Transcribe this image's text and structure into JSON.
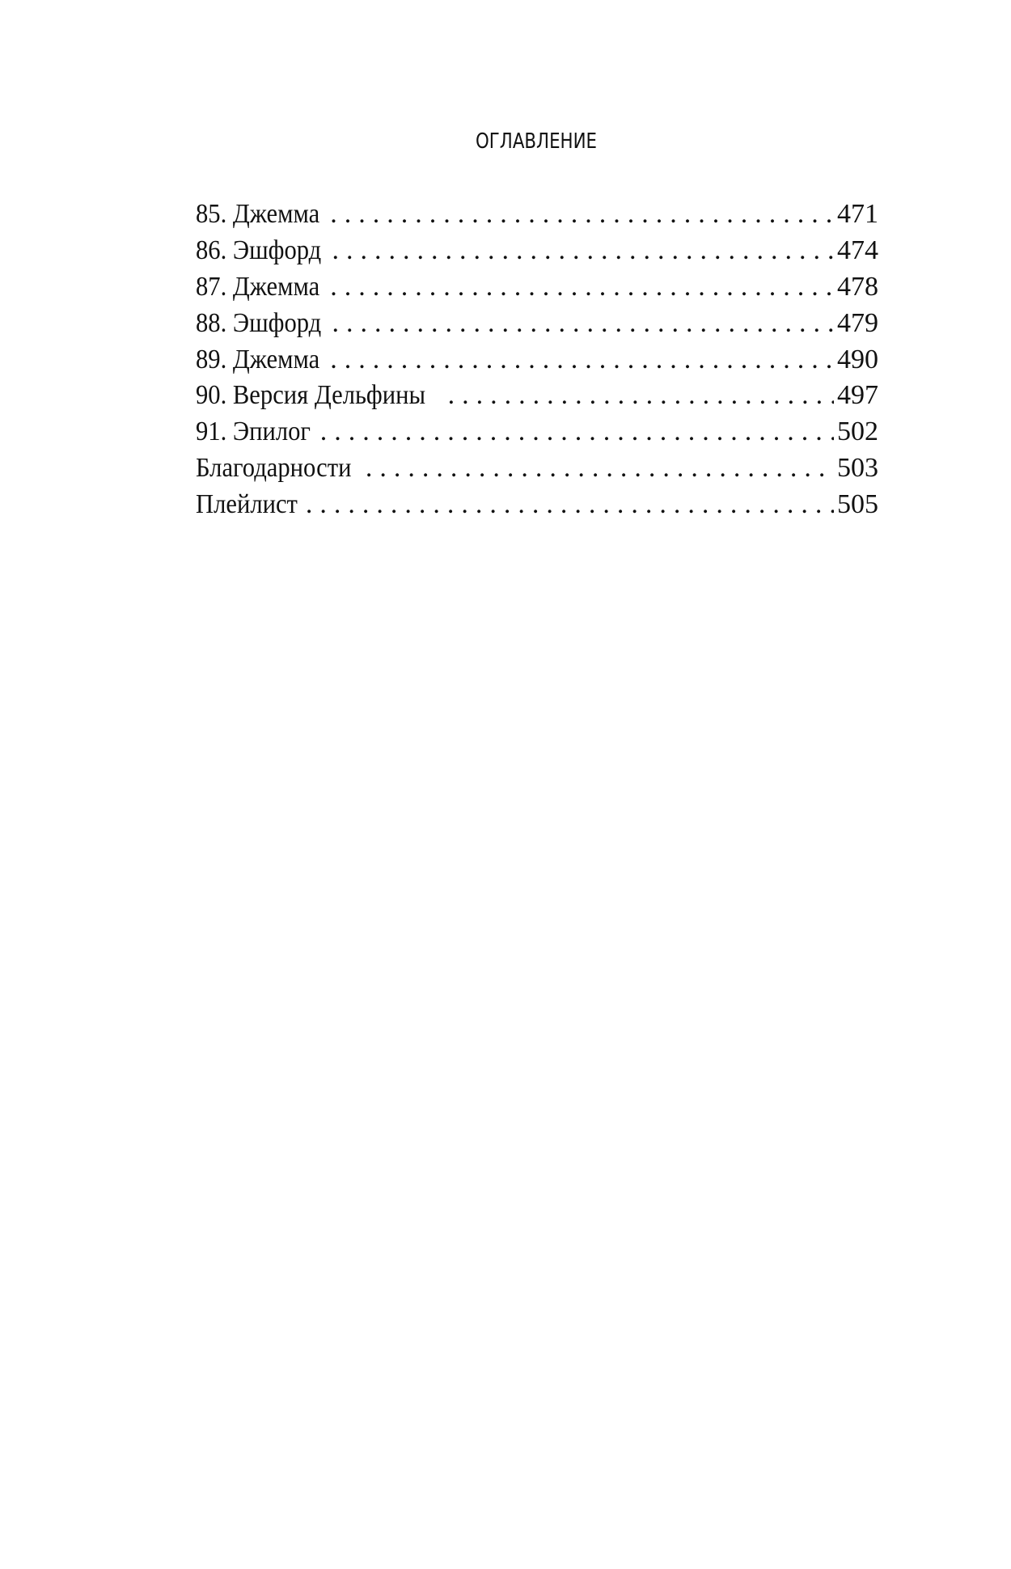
{
  "title": "ОГЛАВЛЕНИЕ",
  "entries": [
    {
      "label": "85. Джемма",
      "page": "471"
    },
    {
      "label": "86. Эшфорд",
      "page": "474"
    },
    {
      "label": "87. Джемма",
      "page": "478"
    },
    {
      "label": "88. Эшфорд",
      "page": "479"
    },
    {
      "label": "89. Джемма",
      "page": "490"
    },
    {
      "label": "90. Версия Дельфины",
      "page": "497"
    },
    {
      "label": "91. Эпилог",
      "page": "502"
    },
    {
      "label": "Благодарности",
      "page": "503"
    },
    {
      "label": "Плейлист",
      "page": "505"
    }
  ]
}
